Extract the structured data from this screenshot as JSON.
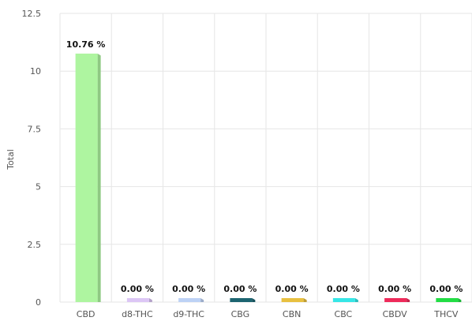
{
  "chart_data": {
    "type": "bar",
    "ylabel": "Total",
    "ylim": [
      0,
      12.5
    ],
    "y_ticks": [
      "0",
      "2.5",
      "5",
      "7.5",
      "10",
      "12.5"
    ],
    "grid": true,
    "categories": [
      "CBD",
      "d8-THC",
      "d9-THC",
      "CBG",
      "CBN",
      "CBC",
      "CBDV",
      "THCV"
    ],
    "values": [
      10.76,
      0.0,
      0.0,
      0.0,
      0.0,
      0.0,
      0.0,
      0.0
    ],
    "data_labels": [
      "10.76 %",
      "0.00 %",
      "0.00 %",
      "0.00 %",
      "0.00 %",
      "0.00 %",
      "0.00 %",
      "0.00 %"
    ],
    "colors": [
      "#aef5a0",
      "#dcc6f5",
      "#bdd2f5",
      "#1c6470",
      "#e8c040",
      "#36e6e6",
      "#ee2a5a",
      "#22dd44"
    ]
  }
}
